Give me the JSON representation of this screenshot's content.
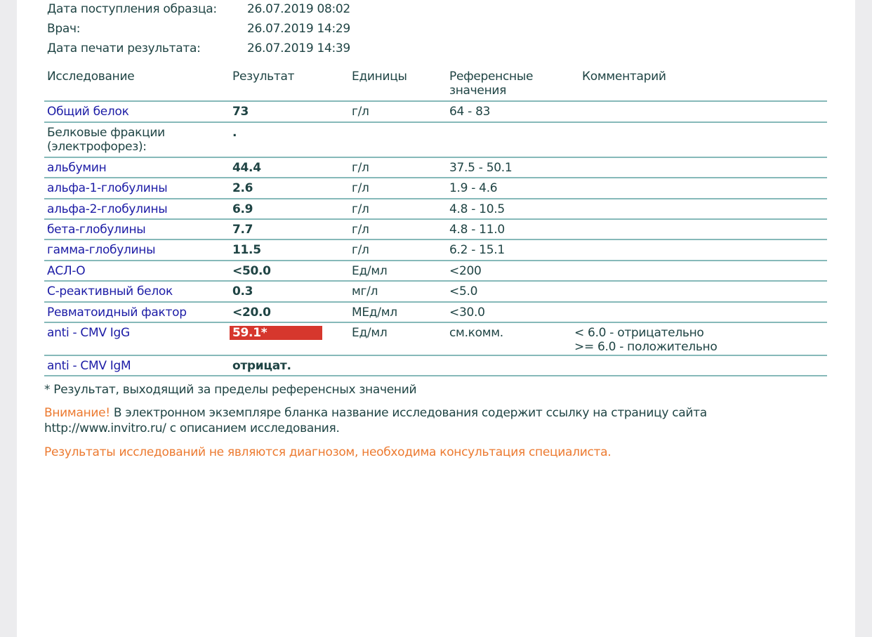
{
  "meta": [
    {
      "label": "Дата поступления образца:",
      "value": "26.07.2019 08:02"
    },
    {
      "label": "Врач:",
      "value": "26.07.2019 14:29"
    },
    {
      "label": "Дата печати результата:",
      "value": "26.07.2019 14:39"
    }
  ],
  "columns": {
    "test": "Исследование",
    "result": "Результат",
    "units": "Единицы",
    "reference": "Референсные значения",
    "comment": "Комментарий"
  },
  "rows": [
    {
      "test": "Общий белок",
      "result": "73",
      "units": "г/л",
      "reference": "64 - 83",
      "comment": "",
      "link": true
    },
    {
      "test": "Белковые фракции (электрофорез):",
      "result": ".",
      "units": "",
      "reference": "",
      "comment": "",
      "link": false
    },
    {
      "test": "альбумин",
      "result": "44.4",
      "units": "г/л",
      "reference": "37.5 - 50.1",
      "comment": "",
      "link": true
    },
    {
      "test": "альфа-1-глобулины",
      "result": "2.6",
      "units": "г/л",
      "reference": "1.9 - 4.6",
      "comment": "",
      "link": true
    },
    {
      "test": "альфа-2-глобулины",
      "result": "6.9",
      "units": "г/л",
      "reference": "4.8 - 10.5",
      "comment": "",
      "link": true
    },
    {
      "test": "бета-глобулины",
      "result": "7.7",
      "units": "г/л",
      "reference": "4.8 - 11.0",
      "comment": "",
      "link": true
    },
    {
      "test": "гамма-глобулины",
      "result": "11.5",
      "units": "г/л",
      "reference": "6.2 - 15.1",
      "comment": "",
      "link": true
    },
    {
      "test": "АСЛ-О",
      "result": "<50.0",
      "units": "Ед/мл",
      "reference": "<200",
      "comment": "",
      "link": true
    },
    {
      "test": "С-реактивный белок",
      "result": "0.3",
      "units": "мг/л",
      "reference": "<5.0",
      "comment": "",
      "link": true
    },
    {
      "test": "Ревматоидный фактор",
      "result": "<20.0",
      "units": "МЕд/мл",
      "reference": "<30.0",
      "comment": "",
      "link": true
    },
    {
      "test": "anti - CMV IgG",
      "result": "59.1*",
      "units": "Ед/мл",
      "reference": "см.комм.",
      "comment": "< 6.0 - отрицательно\n>= 6.0 - положительно",
      "link": true,
      "flagged": true
    },
    {
      "test": "anti - CMV IgM",
      "result": "отрицат.",
      "units": "",
      "reference": "",
      "comment": "",
      "link": true
    }
  ],
  "footnote": "* Результат, выходящий за пределы референсных значений",
  "attention_label": "Внимание!",
  "attention_text": " В электронном экземпляре бланка название исследования содержит ссылку на страницу сайта",
  "attention_url": "http://www.invitro.ru/",
  "attention_text2": " с описанием исследования.",
  "disclaimer": "Результаты исследований не являются диагнозом, необходима консультация специалиста.",
  "colors": {
    "text": "#1f4444",
    "link": "#1c1ca6",
    "flag": "#d6372d",
    "warning": "#ec7a30",
    "rule": "#86b9b9"
  }
}
